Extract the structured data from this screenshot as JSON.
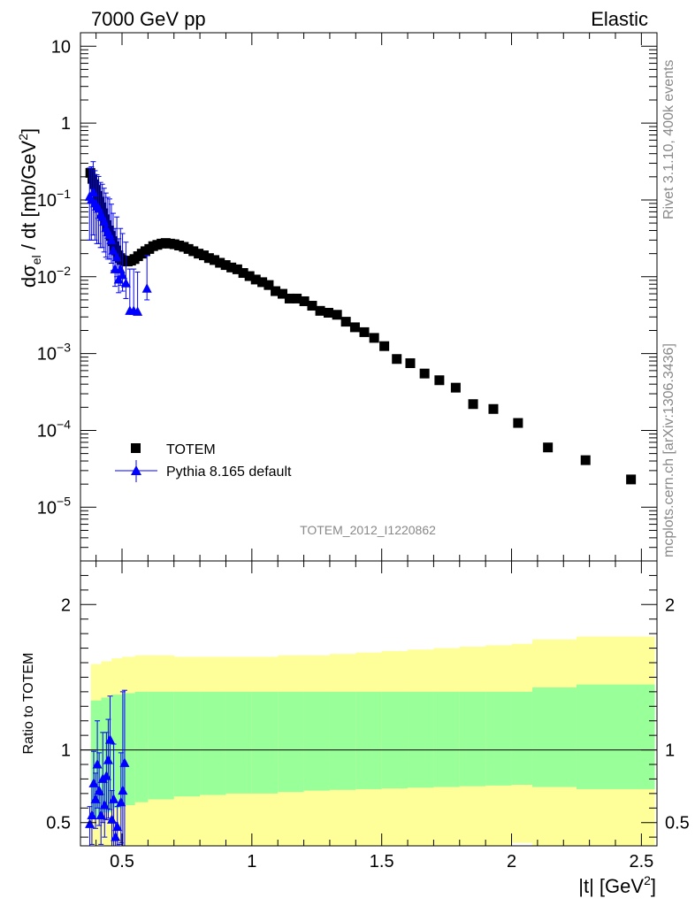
{
  "header": {
    "energy_label": "7000 GeV pp",
    "process_label": "Elastic"
  },
  "side_labels": {
    "rivet": "Rivet 3.1.10,  400k events",
    "mcplots": "mcplots.cern.ch [arXiv:1306.3436]"
  },
  "colors": {
    "data": "#000000",
    "mc": "#0000ff",
    "band_inner": "#99ff99",
    "band_outer": "#ffff99"
  },
  "chart_data": [
    {
      "type": "scatter",
      "title": "",
      "ylabel": "dσel / dt [mb/GeV2]",
      "ylabel_parts": {
        "main": "dσ",
        "sub": "el",
        "rest": " / dt [mb/GeV",
        "sup": "2",
        "close": "]"
      },
      "xlabel": "",
      "yscale": "log",
      "xlim": [
        0.34,
        2.56
      ],
      "ylim": [
        2e-06,
        15
      ],
      "y_tick_labels": [
        {
          "value": 10,
          "label": "10"
        },
        {
          "value": 1,
          "label": "1"
        },
        {
          "value": 0.1,
          "base": "10",
          "exp": "−1"
        },
        {
          "value": 0.01,
          "base": "10",
          "exp": "−2"
        },
        {
          "value": 0.001,
          "base": "10",
          "exp": "−3"
        },
        {
          "value": 0.0001,
          "base": "10",
          "exp": "−4"
        },
        {
          "value": 1e-05,
          "base": "10",
          "exp": "−5"
        }
      ],
      "watermark": "TOTEM_2012_I1220862",
      "legend_position": "center-left",
      "series": [
        {
          "name": "TOTEM",
          "marker": "square",
          "x": [
            0.378,
            0.386,
            0.393,
            0.4,
            0.407,
            0.414,
            0.421,
            0.428,
            0.435,
            0.442,
            0.45,
            0.457,
            0.464,
            0.471,
            0.478,
            0.486,
            0.493,
            0.5,
            0.51,
            0.522,
            0.535,
            0.548,
            0.562,
            0.576,
            0.59,
            0.605,
            0.62,
            0.636,
            0.652,
            0.668,
            0.685,
            0.702,
            0.72,
            0.738,
            0.756,
            0.775,
            0.795,
            0.815,
            0.835,
            0.856,
            0.877,
            0.899,
            0.921,
            0.944,
            0.967,
            0.991,
            1.015,
            1.04,
            1.065,
            1.091,
            1.118,
            1.145,
            1.173,
            1.202,
            1.232,
            1.263,
            1.295,
            1.328,
            1.362,
            1.397,
            1.433,
            1.471,
            1.51,
            1.558,
            1.61,
            1.665,
            1.722,
            1.785,
            1.852,
            1.93,
            2.025,
            2.14,
            2.285,
            2.46
          ],
          "y": [
            0.225,
            0.188,
            0.16,
            0.135,
            0.113,
            0.095,
            0.08,
            0.067,
            0.056,
            0.047,
            0.04,
            0.034,
            0.029,
            0.025,
            0.022,
            0.019,
            0.0175,
            0.0165,
            0.016,
            0.0158,
            0.0162,
            0.017,
            0.0185,
            0.02,
            0.0215,
            0.023,
            0.025,
            0.026,
            0.027,
            0.0275,
            0.027,
            0.0265,
            0.0255,
            0.0245,
            0.023,
            0.0215,
            0.02,
            0.019,
            0.0175,
            0.0165,
            0.0152,
            0.0142,
            0.0132,
            0.0125,
            0.0112,
            0.0102,
            0.0092,
            0.0085,
            0.0078,
            0.0065,
            0.006,
            0.0052,
            0.0052,
            0.0048,
            0.0042,
            0.0036,
            0.0034,
            0.0032,
            0.0026,
            0.0022,
            0.0019,
            0.0016,
            0.00125,
            0.00085,
            0.00075,
            0.00055,
            0.00045,
            0.00036,
            0.00022,
            0.00019,
            0.000125,
            6e-05,
            4.1e-05,
            2.3e-05
          ]
        },
        {
          "name": "Pythia 8.165 default",
          "marker": "triangle",
          "x": [
            0.375,
            0.382,
            0.389,
            0.396,
            0.403,
            0.41,
            0.417,
            0.424,
            0.431,
            0.438,
            0.445,
            0.452,
            0.459,
            0.466,
            0.473,
            0.48,
            0.487,
            0.494,
            0.502,
            0.515,
            0.53,
            0.545,
            0.56,
            0.596
          ],
          "y": [
            0.11,
            0.1,
            0.125,
            0.09,
            0.082,
            0.077,
            0.064,
            0.06,
            0.052,
            0.043,
            0.038,
            0.035,
            0.03,
            0.022,
            0.0125,
            0.018,
            0.0092,
            0.0125,
            0.0105,
            0.0082,
            0.0036,
            0.0036,
            0.0035,
            0.007
          ],
          "err_up": [
            0.15,
            0.17,
            0.19,
            0.15,
            0.13,
            0.125,
            0.105,
            0.1,
            0.09,
            0.08,
            0.07,
            0.068,
            0.058,
            0.045,
            0.03,
            0.042,
            0.022,
            0.03,
            0.026,
            0.02,
            0.009,
            0.009,
            0.008,
            0.012
          ],
          "err_down": [
            0.08,
            0.07,
            0.09,
            0.06,
            0.055,
            0.05,
            0.04,
            0.036,
            0.031,
            0.025,
            0.021,
            0.018,
            0.015,
            0.01,
            0.005,
            0.008,
            0.003,
            0.0048,
            0.004,
            0.003,
            1e-09,
            1e-09,
            1e-09,
            0.002
          ]
        }
      ]
    },
    {
      "type": "scatter",
      "title": "",
      "ylabel": "Ratio to TOTEM",
      "xlabel": "|t| [GeV2]",
      "xlabel_parts": {
        "main": "|t| [GeV",
        "sup": "2",
        "close": "]"
      },
      "xlim": [
        0.34,
        2.56
      ],
      "ylim": [
        0.34,
        2.3
      ],
      "x_ticks": [
        0.5,
        1,
        1.5,
        2,
        2.5
      ],
      "x_tick_labels": [
        "0.5",
        "1",
        "1.5",
        "2",
        "2.5"
      ],
      "y_ticks": [
        0.5,
        1,
        2
      ],
      "y_tick_labels": [
        "0.5",
        "1",
        "2"
      ],
      "reference_line": 1,
      "band_edges": [
        0.38,
        0.42,
        0.46,
        0.5,
        0.55,
        0.6,
        0.7,
        0.8,
        0.9,
        1.0,
        1.1,
        1.2,
        1.3,
        1.4,
        1.5,
        1.6,
        1.7,
        1.8,
        1.9,
        2.0,
        2.08,
        2.25,
        2.55
      ],
      "band_inner_lo": [
        0.53,
        0.57,
        0.6,
        0.62,
        0.64,
        0.66,
        0.68,
        0.69,
        0.7,
        0.7,
        0.71,
        0.72,
        0.725,
        0.73,
        0.735,
        0.74,
        0.745,
        0.75,
        0.755,
        0.76,
        0.745,
        0.73
      ],
      "band_inner_hi": [
        1.34,
        1.36,
        1.38,
        1.39,
        1.4,
        1.4,
        1.4,
        1.4,
        1.4,
        1.4,
        1.4,
        1.4,
        1.4,
        1.4,
        1.4,
        1.4,
        1.4,
        1.4,
        1.4,
        1.4,
        1.43,
        1.45
      ],
      "band_outer_lo": [
        0.3,
        0.3,
        0.3,
        0.3,
        0.3,
        0.3,
        0.3,
        0.3,
        0.3,
        0.3,
        0.3,
        0.3,
        0.3,
        0.3,
        0.3,
        0.3,
        0.3,
        0.3,
        0.3,
        0.36,
        0.3,
        0.3
      ],
      "band_outer_hi": [
        1.59,
        1.61,
        1.63,
        1.64,
        1.65,
        1.65,
        1.64,
        1.64,
        1.64,
        1.64,
        1.65,
        1.65,
        1.66,
        1.67,
        1.68,
        1.69,
        1.7,
        1.71,
        1.72,
        1.73,
        1.76,
        1.78
      ],
      "series": [
        {
          "name": "Pythia 8.165 default",
          "marker": "triangle",
          "x": [
            0.376,
            0.384,
            0.391,
            0.398,
            0.405,
            0.412,
            0.419,
            0.426,
            0.433,
            0.44,
            0.447,
            0.454,
            0.461,
            0.468,
            0.475,
            0.482,
            0.489,
            0.496,
            0.503,
            0.51
          ],
          "y": [
            0.49,
            0.55,
            0.77,
            0.66,
            0.9,
            0.72,
            0.55,
            0.8,
            0.62,
            0.82,
            0.93,
            1.07,
            0.52,
            0.66,
            0.4,
            0.47,
            0.33,
            0.64,
            0.72,
            0.91
          ],
          "err_up": [
            0.12,
            0.2,
            0.22,
            0.18,
            0.3,
            0.26,
            0.14,
            0.32,
            0.18,
            0.3,
            0.28,
            0.3,
            0.2,
            0.38,
            0.1,
            0.14,
            0.02,
            0.34,
            0.68,
            0.5
          ],
          "err_down": [
            0.2,
            0.2,
            0.24,
            0.2,
            0.3,
            0.24,
            0.2,
            0.3,
            0.22,
            0.3,
            0.4,
            0.48,
            0.2,
            0.32,
            0.1,
            0.16,
            0.02,
            0.28,
            0.4,
            0.6
          ]
        }
      ]
    }
  ]
}
